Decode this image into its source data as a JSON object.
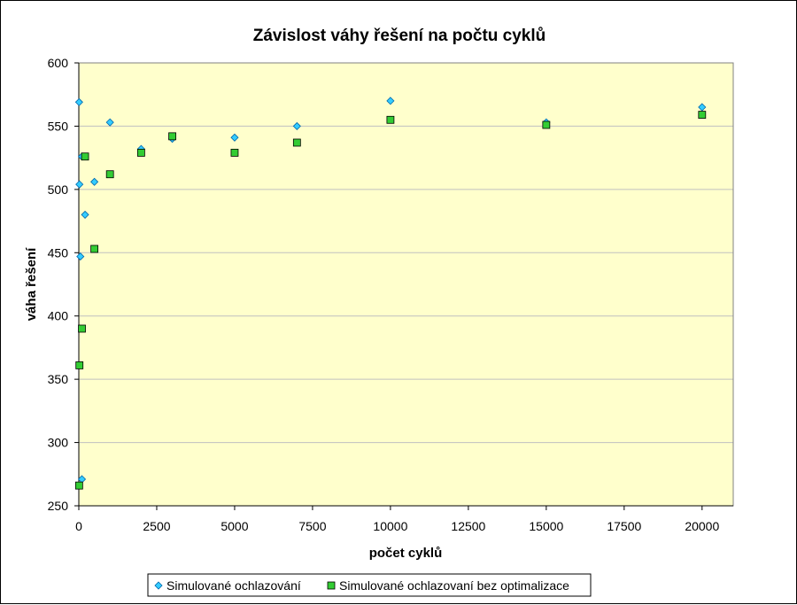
{
  "chart_data": {
    "type": "scatter",
    "title": "Závislost váhy řešení na počtu cyklů",
    "xlabel": "počet cyklů",
    "ylabel": "váha řešení",
    "xlim": [
      0,
      21000
    ],
    "ylim": [
      250,
      600
    ],
    "x_ticks": [
      0,
      2500,
      5000,
      7500,
      10000,
      12500,
      15000,
      17500,
      20000
    ],
    "x_tick_labels": [
      "0",
      "2500",
      "5000",
      "7500",
      "10000",
      "12500",
      "15000",
      "17500",
      "20000"
    ],
    "y_ticks": [
      250,
      300,
      350,
      400,
      450,
      500,
      550,
      600
    ],
    "y_tick_labels": [
      "250",
      "300",
      "350",
      "400",
      "450",
      "500",
      "550",
      "600"
    ],
    "grid": "horizontal",
    "plot_background": "#FFFFCC",
    "grid_color": "#C0C0C0",
    "legend_position": "bottom",
    "series": [
      {
        "name": "Simulované ochlazování",
        "marker": "diamond",
        "color": "#33CCFF",
        "points": [
          {
            "x": 10,
            "y": 569
          },
          {
            "x": 20,
            "y": 504
          },
          {
            "x": 50,
            "y": 447
          },
          {
            "x": 100,
            "y": 271
          },
          {
            "x": 100,
            "y": 526
          },
          {
            "x": 200,
            "y": 480
          },
          {
            "x": 500,
            "y": 506
          },
          {
            "x": 1000,
            "y": 553
          },
          {
            "x": 2000,
            "y": 532
          },
          {
            "x": 3000,
            "y": 540
          },
          {
            "x": 5000,
            "y": 541
          },
          {
            "x": 7000,
            "y": 550
          },
          {
            "x": 10000,
            "y": 570
          },
          {
            "x": 15000,
            "y": 553
          },
          {
            "x": 20000,
            "y": 565
          }
        ]
      },
      {
        "name": "Simulované ochlazovaní bez optimalizace",
        "marker": "square",
        "color": "#33CC33",
        "points": [
          {
            "x": 10,
            "y": 266
          },
          {
            "x": 20,
            "y": 361
          },
          {
            "x": 100,
            "y": 390
          },
          {
            "x": 200,
            "y": 526
          },
          {
            "x": 500,
            "y": 453
          },
          {
            "x": 1000,
            "y": 512
          },
          {
            "x": 2000,
            "y": 529
          },
          {
            "x": 3000,
            "y": 542
          },
          {
            "x": 5000,
            "y": 529
          },
          {
            "x": 7000,
            "y": 537
          },
          {
            "x": 10000,
            "y": 555
          },
          {
            "x": 15000,
            "y": 551
          },
          {
            "x": 20000,
            "y": 559
          }
        ]
      }
    ]
  }
}
